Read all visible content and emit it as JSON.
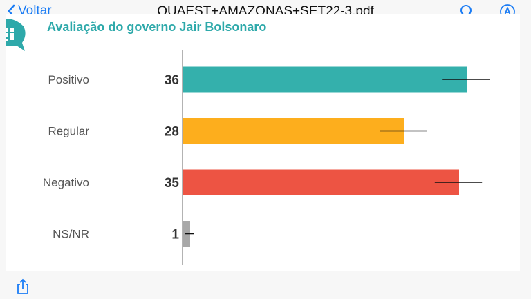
{
  "nav": {
    "back_label": "Voltar",
    "title": "QUAEST+AMAZONAS+SET22-3.pdf"
  },
  "icons": {
    "back": "chevron-left-icon",
    "search": "search-icon",
    "markup": "markup-pen-icon",
    "share": "share-icon",
    "logo": "quaest-logo-icon"
  },
  "chart_data": {
    "type": "bar",
    "orientation": "horizontal",
    "title": "Avaliação do governo Jair Bolsonaro",
    "categories": [
      "Positivo",
      "Regular",
      "Negativo",
      "NS/NR"
    ],
    "values": [
      36,
      28,
      35,
      1
    ],
    "error_bar_range": [
      [
        33,
        39
      ],
      [
        25,
        31
      ],
      [
        32,
        38
      ],
      [
        0,
        1.5
      ]
    ],
    "colors": [
      "#34b0ac",
      "#fdae1d",
      "#ed5443",
      "#a8a8a8"
    ],
    "grid": false,
    "legend": "none"
  }
}
